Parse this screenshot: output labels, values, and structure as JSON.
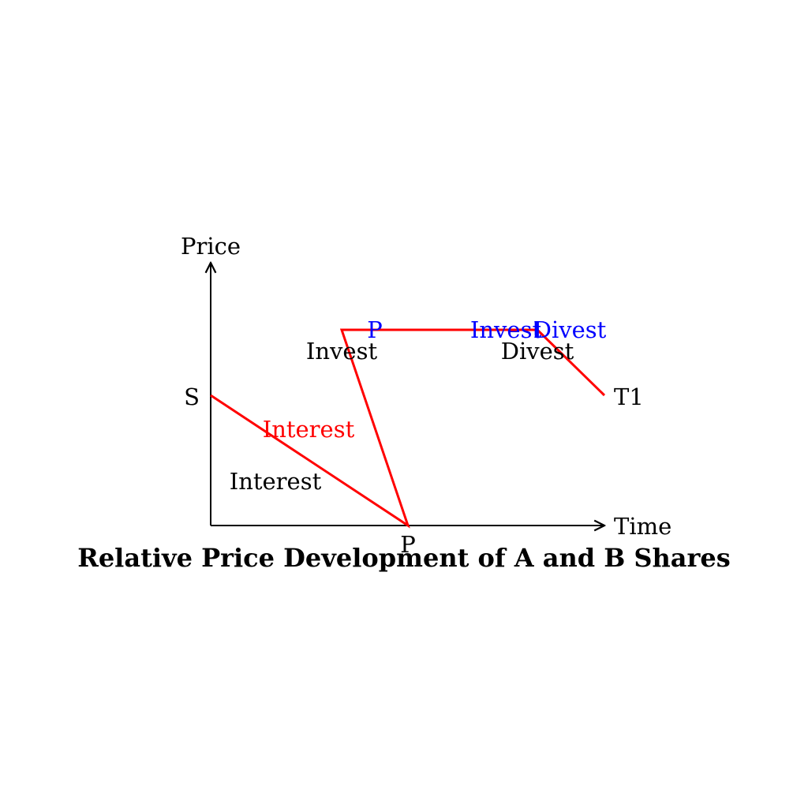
{
  "title": "Relative Price Development of A and B Shares",
  "axes": {
    "y_label": "Price",
    "x_label": "Time"
  },
  "points": {
    "start": "S",
    "bottom": "P",
    "end": "T1"
  },
  "black_labels": {
    "interest": "Interest",
    "invest": "Invest",
    "divest": "Divest"
  },
  "red_labels": {
    "interest": "Interest"
  },
  "blue_labels": {
    "p": "P",
    "invest": "Invest",
    "divest": "Divest"
  },
  "colors": {
    "axis": "#000000",
    "path": "#ff0000",
    "red_text": "#ff0000",
    "blue_text": "#0000ff",
    "text": "#000000"
  }
}
